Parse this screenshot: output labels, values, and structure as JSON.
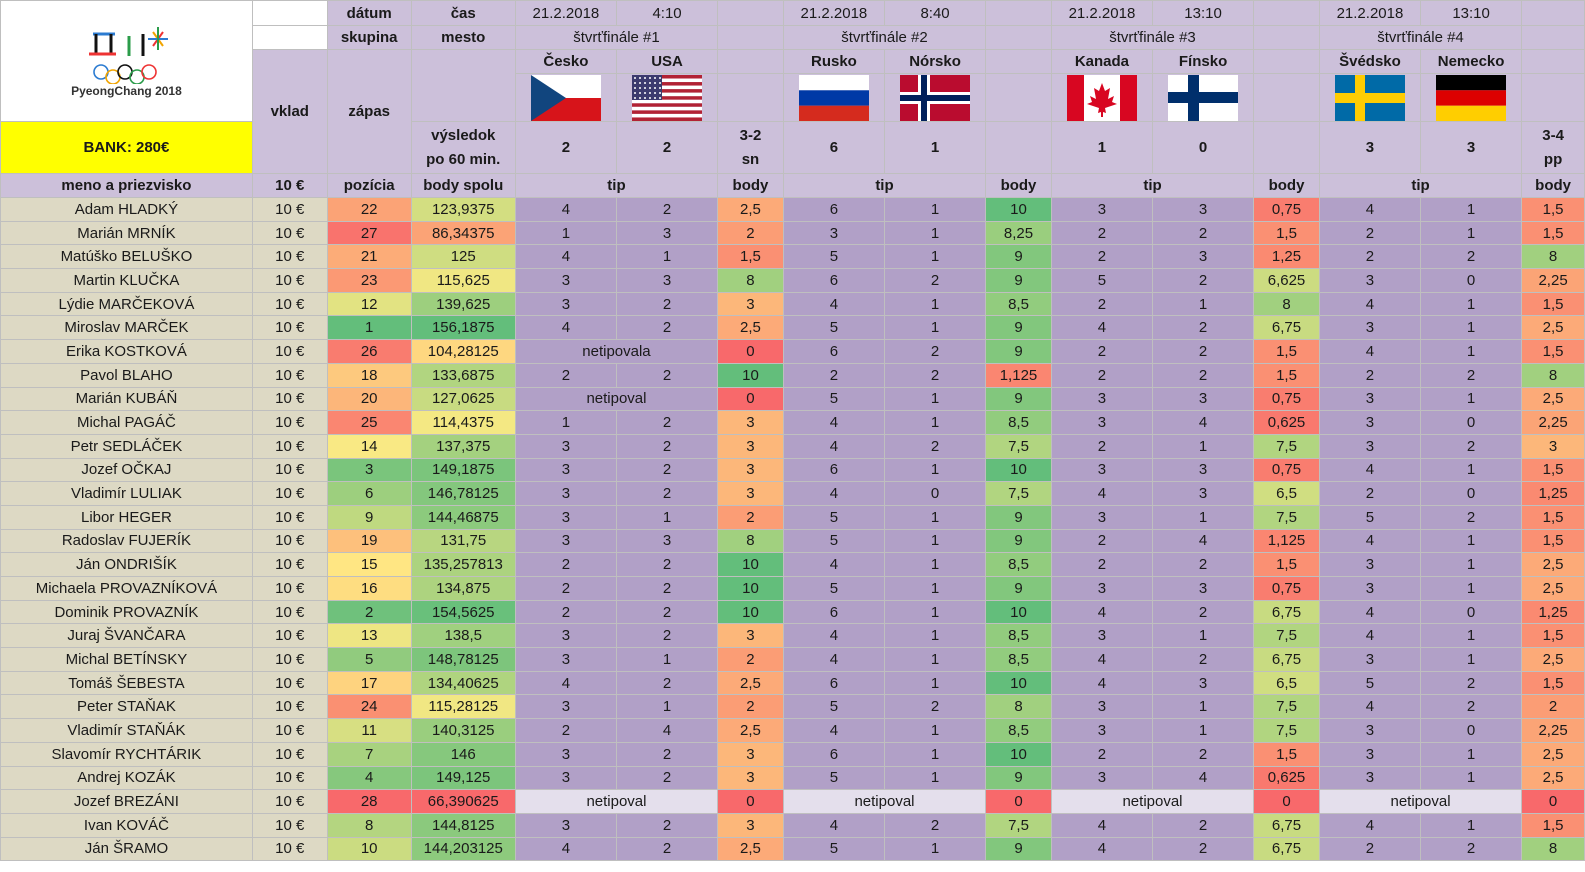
{
  "header": {
    "logo_text": "PyeongChang 2018",
    "bank": "BANK: 280€",
    "datum": "dátum",
    "cas": "čas",
    "skupina": "skupina",
    "mesto": "mesto",
    "vklad": "vklad",
    "zapas": "zápas",
    "vysledok": "výsledok",
    "po60": "po 60 min.",
    "col_meno": "meno a priezvisko",
    "col_vklad": "10 €",
    "col_pozicia": "pozícia",
    "col_body_spolu": "body spolu",
    "col_tip": "tip",
    "col_body": "body"
  },
  "matches": [
    {
      "date": "21.2.2018",
      "time": "4:10",
      "stage": "štvrťfinále #1",
      "team1": "Česko",
      "team2": "USA",
      "flag1": "czech-flag",
      "flag2": "usa-flag",
      "score1": "2",
      "score2": "2",
      "note1": "3-2",
      "note2": "sn"
    },
    {
      "date": "21.2.2018",
      "time": "8:40",
      "stage": "štvrťfinále #2",
      "team1": "Rusko",
      "team2": "Nórsko",
      "flag1": "russia-flag",
      "flag2": "norway-flag",
      "score1": "6",
      "score2": "1",
      "note1": "",
      "note2": ""
    },
    {
      "date": "21.2.2018",
      "time": "13:10",
      "stage": "štvrťfinále #3",
      "team1": "Kanada",
      "team2": "Fínsko",
      "flag1": "canada-flag",
      "flag2": "finland-flag",
      "score1": "1",
      "score2": "0",
      "note1": "",
      "note2": ""
    },
    {
      "date": "21.2.2018",
      "time": "13:10",
      "stage": "štvrťfinále #4",
      "team1": "Švédsko",
      "team2": "Nemecko",
      "flag1": "sweden-flag",
      "flag2": "germany-flag",
      "score1": "3",
      "score2": "3",
      "note1": "3-4",
      "note2": "pp"
    }
  ],
  "rows": [
    {
      "name": "Adam HLADKÝ",
      "vklad": "10 €",
      "pos": "22",
      "total": "123,9375",
      "m": [
        [
          "4",
          "2",
          "2,5"
        ],
        [
          "6",
          "1",
          "10"
        ],
        [
          "3",
          "3",
          "0,75"
        ],
        [
          "4",
          "1",
          "1,5"
        ]
      ]
    },
    {
      "name": "Marián MRNÍK",
      "vklad": "10 €",
      "pos": "27",
      "total": "86,34375",
      "m": [
        [
          "1",
          "3",
          "2"
        ],
        [
          "3",
          "1",
          "8,25"
        ],
        [
          "2",
          "2",
          "1,5"
        ],
        [
          "2",
          "1",
          "1,5"
        ]
      ]
    },
    {
      "name": "Matúško BELUŠKO",
      "vklad": "10 €",
      "pos": "21",
      "total": "125",
      "m": [
        [
          "4",
          "1",
          "1,5"
        ],
        [
          "5",
          "1",
          "9"
        ],
        [
          "2",
          "3",
          "1,25"
        ],
        [
          "2",
          "2",
          "8"
        ]
      ]
    },
    {
      "name": "Martin KLUČKA",
      "vklad": "10 €",
      "pos": "23",
      "total": "115,625",
      "m": [
        [
          "3",
          "3",
          "8"
        ],
        [
          "6",
          "2",
          "9"
        ],
        [
          "5",
          "2",
          "6,625"
        ],
        [
          "3",
          "0",
          "2,25"
        ]
      ]
    },
    {
      "name": "Lýdie MARČEKOVÁ",
      "vklad": "10 €",
      "pos": "12",
      "total": "139,625",
      "m": [
        [
          "3",
          "2",
          "3"
        ],
        [
          "4",
          "1",
          "8,5"
        ],
        [
          "2",
          "1",
          "8"
        ],
        [
          "4",
          "1",
          "1,5"
        ]
      ]
    },
    {
      "name": "Miroslav MARČEK",
      "vklad": "10 €",
      "pos": "1",
      "total": "156,1875",
      "m": [
        [
          "4",
          "2",
          "2,5"
        ],
        [
          "5",
          "1",
          "9"
        ],
        [
          "4",
          "2",
          "6,75"
        ],
        [
          "3",
          "1",
          "2,5"
        ]
      ]
    },
    {
      "name": "Erika KOSTKOVÁ",
      "vklad": "10 €",
      "pos": "26",
      "total": "104,28125",
      "m": [
        [
          "netipovala",
          "",
          "0"
        ],
        [
          "6",
          "2",
          "9"
        ],
        [
          "2",
          "2",
          "1,5"
        ],
        [
          "4",
          "1",
          "1,5"
        ]
      ]
    },
    {
      "name": "Pavol BLAHO",
      "vklad": "10 €",
      "pos": "18",
      "total": "133,6875",
      "m": [
        [
          "2",
          "2",
          "10"
        ],
        [
          "2",
          "2",
          "1,125"
        ],
        [
          "2",
          "2",
          "1,5"
        ],
        [
          "2",
          "2",
          "8"
        ]
      ]
    },
    {
      "name": "Marián KUBÁŇ",
      "vklad": "10 €",
      "pos": "20",
      "total": "127,0625",
      "m": [
        [
          "netipoval",
          "",
          "0"
        ],
        [
          "5",
          "1",
          "9"
        ],
        [
          "3",
          "3",
          "0,75"
        ],
        [
          "3",
          "1",
          "2,5"
        ]
      ]
    },
    {
      "name": "Michal PAGÁČ",
      "vklad": "10 €",
      "pos": "25",
      "total": "114,4375",
      "m": [
        [
          "1",
          "2",
          "3"
        ],
        [
          "4",
          "1",
          "8,5"
        ],
        [
          "3",
          "4",
          "0,625"
        ],
        [
          "3",
          "0",
          "2,25"
        ]
      ]
    },
    {
      "name": "Petr SEDLÁČEK",
      "vklad": "10 €",
      "pos": "14",
      "total": "137,375",
      "m": [
        [
          "3",
          "2",
          "3"
        ],
        [
          "4",
          "2",
          "7,5"
        ],
        [
          "2",
          "1",
          "7,5"
        ],
        [
          "3",
          "2",
          "3"
        ]
      ]
    },
    {
      "name": "Jozef OČKAJ",
      "vklad": "10 €",
      "pos": "3",
      "total": "149,1875",
      "m": [
        [
          "3",
          "2",
          "3"
        ],
        [
          "6",
          "1",
          "10"
        ],
        [
          "3",
          "3",
          "0,75"
        ],
        [
          "4",
          "1",
          "1,5"
        ]
      ]
    },
    {
      "name": "Vladimír LULIAK",
      "vklad": "10 €",
      "pos": "6",
      "total": "146,78125",
      "m": [
        [
          "3",
          "2",
          "3"
        ],
        [
          "4",
          "0",
          "7,5"
        ],
        [
          "4",
          "3",
          "6,5"
        ],
        [
          "2",
          "0",
          "1,25"
        ]
      ]
    },
    {
      "name": "Libor HEGER",
      "vklad": "10 €",
      "pos": "9",
      "total": "144,46875",
      "m": [
        [
          "3",
          "1",
          "2"
        ],
        [
          "5",
          "1",
          "9"
        ],
        [
          "3",
          "1",
          "7,5"
        ],
        [
          "5",
          "2",
          "1,5"
        ]
      ]
    },
    {
      "name": "Radoslav FUJERÍK",
      "vklad": "10 €",
      "pos": "19",
      "total": "131,75",
      "m": [
        [
          "3",
          "3",
          "8"
        ],
        [
          "5",
          "1",
          "9"
        ],
        [
          "2",
          "4",
          "1,125"
        ],
        [
          "4",
          "1",
          "1,5"
        ]
      ]
    },
    {
      "name": "Ján ONDRIŠÍK",
      "vklad": "10 €",
      "pos": "15",
      "total": "135,257813",
      "m": [
        [
          "2",
          "2",
          "10"
        ],
        [
          "4",
          "1",
          "8,5"
        ],
        [
          "2",
          "2",
          "1,5"
        ],
        [
          "3",
          "1",
          "2,5"
        ]
      ]
    },
    {
      "name": "Michaela PROVAZNÍKOVÁ",
      "vklad": "10 €",
      "pos": "16",
      "total": "134,875",
      "m": [
        [
          "2",
          "2",
          "10"
        ],
        [
          "5",
          "1",
          "9"
        ],
        [
          "3",
          "3",
          "0,75"
        ],
        [
          "3",
          "1",
          "2,5"
        ]
      ]
    },
    {
      "name": "Dominik PROVAZNÍK",
      "vklad": "10 €",
      "pos": "2",
      "total": "154,5625",
      "m": [
        [
          "2",
          "2",
          "10"
        ],
        [
          "6",
          "1",
          "10"
        ],
        [
          "4",
          "2",
          "6,75"
        ],
        [
          "4",
          "0",
          "1,25"
        ]
      ]
    },
    {
      "name": "Juraj ŠVANČARA",
      "vklad": "10 €",
      "pos": "13",
      "total": "138,5",
      "m": [
        [
          "3",
          "2",
          "3"
        ],
        [
          "4",
          "1",
          "8,5"
        ],
        [
          "3",
          "1",
          "7,5"
        ],
        [
          "4",
          "1",
          "1,5"
        ]
      ]
    },
    {
      "name": "Michal BETÍNSKY",
      "vklad": "10 €",
      "pos": "5",
      "total": "148,78125",
      "m": [
        [
          "3",
          "1",
          "2"
        ],
        [
          "4",
          "1",
          "8,5"
        ],
        [
          "4",
          "2",
          "6,75"
        ],
        [
          "3",
          "1",
          "2,5"
        ]
      ]
    },
    {
      "name": "Tomáš ŠEBESTA",
      "vklad": "10 €",
      "pos": "17",
      "total": "134,40625",
      "m": [
        [
          "4",
          "2",
          "2,5"
        ],
        [
          "6",
          "1",
          "10"
        ],
        [
          "4",
          "3",
          "6,5"
        ],
        [
          "5",
          "2",
          "1,5"
        ]
      ]
    },
    {
      "name": "Peter STAŇAK",
      "vklad": "10 €",
      "pos": "24",
      "total": "115,28125",
      "m": [
        [
          "3",
          "1",
          "2"
        ],
        [
          "5",
          "2",
          "8"
        ],
        [
          "3",
          "1",
          "7,5"
        ],
        [
          "4",
          "2",
          "2"
        ]
      ]
    },
    {
      "name": "Vladimír STAŇÁK",
      "vklad": "10 €",
      "pos": "11",
      "total": "140,3125",
      "m": [
        [
          "2",
          "4",
          "2,5"
        ],
        [
          "4",
          "1",
          "8,5"
        ],
        [
          "3",
          "1",
          "7,5"
        ],
        [
          "3",
          "0",
          "2,25"
        ]
      ]
    },
    {
      "name": "Slavomír RYCHTÁRIK",
      "vklad": "10 €",
      "pos": "7",
      "total": "146",
      "m": [
        [
          "3",
          "2",
          "3"
        ],
        [
          "6",
          "1",
          "10"
        ],
        [
          "2",
          "2",
          "1,5"
        ],
        [
          "3",
          "1",
          "2,5"
        ]
      ]
    },
    {
      "name": "Andrej KOZÁK",
      "vklad": "10 €",
      "pos": "4",
      "total": "149,125",
      "m": [
        [
          "3",
          "2",
          "3"
        ],
        [
          "5",
          "1",
          "9"
        ],
        [
          "3",
          "4",
          "0,625"
        ],
        [
          "3",
          "1",
          "2,5"
        ]
      ]
    },
    {
      "name": "Jozef BREZÁNI",
      "vklad": "10 €",
      "pos": "28",
      "total": "66,390625",
      "m": [
        [
          "netipoval",
          "",
          "0"
        ],
        [
          "netipoval",
          "",
          "0"
        ],
        [
          "netipoval",
          "",
          "0"
        ],
        [
          "netipoval",
          "",
          "0"
        ]
      ]
    },
    {
      "name": "Ivan KOVÁČ",
      "vklad": "10 €",
      "pos": "8",
      "total": "144,8125",
      "m": [
        [
          "3",
          "2",
          "3"
        ],
        [
          "4",
          "2",
          "7,5"
        ],
        [
          "4",
          "2",
          "6,75"
        ],
        [
          "4",
          "1",
          "1,5"
        ]
      ]
    },
    {
      "name": "Ján ŠRAMO",
      "vklad": "10 €",
      "pos": "10",
      "total": "144,203125",
      "m": [
        [
          "4",
          "2",
          "2,5"
        ],
        [
          "5",
          "1",
          "9"
        ],
        [
          "4",
          "2",
          "6,75"
        ],
        [
          "2",
          "2",
          "8"
        ]
      ]
    }
  ]
}
